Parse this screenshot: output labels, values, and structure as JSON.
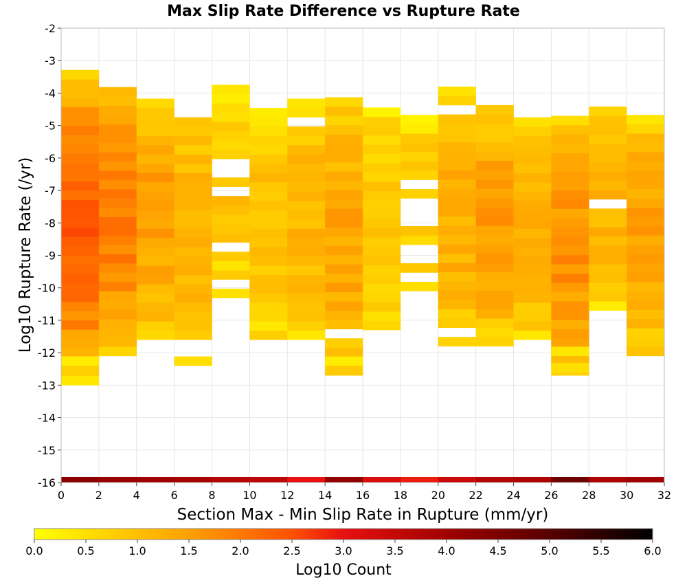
{
  "chart_data": {
    "type": "heatmap",
    "title": "Max Slip Rate Difference vs Rupture Rate",
    "xlabel": "Section Max - Min Slip Rate in Rupture (mm/yr)",
    "ylabel": "Log10 Rupture Rate (/yr)",
    "xlim": [
      0,
      32
    ],
    "ylim": [
      -16,
      -2
    ],
    "xticks": [
      "0",
      "2",
      "4",
      "6",
      "8",
      "10",
      "12",
      "14",
      "16",
      "18",
      "20",
      "22",
      "24",
      "26",
      "28",
      "30",
      "32"
    ],
    "yticks": [
      "-2",
      "-3",
      "-4",
      "-5",
      "-6",
      "-7",
      "-8",
      "-9",
      "-10",
      "-11",
      "-12",
      "-13",
      "-14",
      "-15",
      "-16"
    ],
    "x_bin_width": 2,
    "y_bin_height": 0.2857,
    "grid": true,
    "colorbar": {
      "label": "Log10 Count",
      "min": 0.0,
      "max": 6.0,
      "ticks": [
        "0.0",
        "0.5",
        "1.0",
        "1.5",
        "2.0",
        "2.5",
        "3.0",
        "3.5",
        "4.0",
        "4.5",
        "5.0",
        "5.5",
        "6.0"
      ],
      "stops": [
        [
          0.0,
          "#ffff00"
        ],
        [
          1.5,
          "#ffa000"
        ],
        [
          2.5,
          "#ff5000"
        ],
        [
          3.0,
          "#e81010"
        ],
        [
          4.0,
          "#a00000"
        ],
        [
          5.0,
          "#580000"
        ],
        [
          6.0,
          "#000000"
        ]
      ]
    },
    "columns": [
      {
        "x0": 0,
        "ymin": -13.0,
        "ymax": -3.3,
        "center": 2.3,
        "edge": 0.3,
        "bottom": 4.3
      },
      {
        "x0": 2,
        "ymin": -12.1,
        "ymax": -3.8,
        "center": 1.9,
        "edge": 0.7,
        "bottom": 4.1
      },
      {
        "x0": 4,
        "ymin": -11.6,
        "ymax": -4.1,
        "center": 1.5,
        "edge": 0.5,
        "bottom": 4.0
      },
      {
        "x0": 6,
        "ymin": -11.6,
        "ymax": -4.7,
        "center": 1.2,
        "edge": 0.6,
        "bottom": 3.9
      },
      {
        "x0": 8,
        "ymin": -10.6,
        "ymax": -3.8,
        "center": 0.9,
        "edge": 0.2,
        "bottom": 3.7
      },
      {
        "x0": 10,
        "ymin": -11.6,
        "ymax": -4.4,
        "center": 1.0,
        "edge": 0.4,
        "bottom": 3.6
      },
      {
        "x0": 12,
        "ymin": -11.6,
        "ymax": -4.1,
        "center": 1.2,
        "edge": 0.4,
        "bottom": 3.0
      },
      {
        "x0": 14,
        "ymin": -12.7,
        "ymax": -4.1,
        "center": 1.4,
        "edge": 0.5,
        "bottom": 4.2
      },
      {
        "x0": 16,
        "ymin": -11.3,
        "ymax": -4.4,
        "center": 0.9,
        "edge": 0.3,
        "bottom": 3.2
      },
      {
        "x0": 18,
        "ymin": -10.1,
        "ymax": -4.7,
        "center": 0.9,
        "edge": 0.3,
        "bottom": 2.9
      },
      {
        "x0": 20,
        "ymin": -11.8,
        "ymax": -3.8,
        "center": 1.3,
        "edge": 0.4,
        "bottom": 3.4
      },
      {
        "x0": 22,
        "ymin": -11.8,
        "ymax": -4.4,
        "center": 1.6,
        "edge": 0.4,
        "bottom": 3.7
      },
      {
        "x0": 24,
        "ymin": -11.6,
        "ymax": -4.7,
        "center": 1.3,
        "edge": 0.4,
        "bottom": 3.8
      },
      {
        "x0": 26,
        "ymin": -12.7,
        "ymax": -4.7,
        "center": 1.7,
        "edge": 0.5,
        "bottom": 4.7
      },
      {
        "x0": 28,
        "ymin": -10.7,
        "ymax": -4.1,
        "center": 1.2,
        "edge": 0.3,
        "bottom": 3.8
      },
      {
        "x0": 30,
        "ymin": -12.1,
        "ymax": -4.7,
        "center": 1.5,
        "edge": 0.5,
        "bottom": 4.0
      }
    ],
    "empty_cells": [
      [
        8,
        -6.9
      ],
      [
        8,
        -6.6
      ],
      [
        8,
        -6.3
      ],
      [
        8,
        -6.1
      ],
      [
        8,
        -8.8
      ],
      [
        8,
        -10.0
      ],
      [
        8,
        -10.5
      ],
      [
        6,
        -4.4
      ],
      [
        12,
        -5.0
      ],
      [
        14,
        -11.4
      ],
      [
        18,
        -6.7
      ],
      [
        18,
        -7.4
      ],
      [
        18,
        -7.8
      ],
      [
        18,
        -8.1
      ],
      [
        18,
        -8.7
      ],
      [
        18,
        -9.0
      ],
      [
        18,
        -9.6
      ],
      [
        20,
        -4.4
      ],
      [
        20,
        -11.3
      ],
      [
        22,
        -4.2
      ],
      [
        28,
        -4.4
      ],
      [
        28,
        -7.5
      ]
    ],
    "extra_cells": [
      [
        6,
        -12.4,
        0.5
      ],
      [
        26,
        -12.1,
        0.4
      ],
      [
        26,
        -12.6,
        0.5
      ],
      [
        14,
        -12.4,
        0.3
      ],
      [
        0,
        -12.4,
        0.3
      ]
    ]
  }
}
